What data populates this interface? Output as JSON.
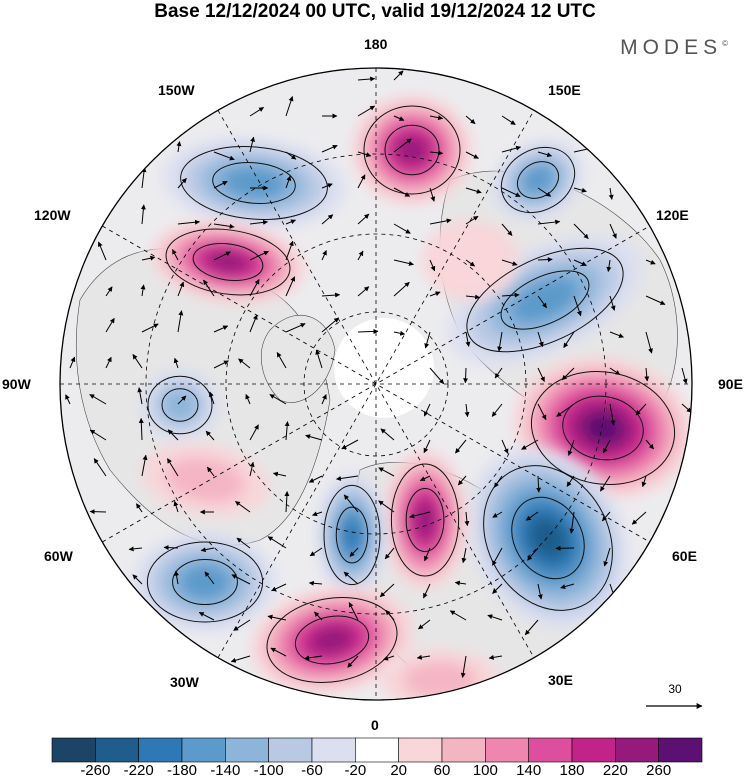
{
  "title": "Base 12/12/2024 00 UTC, valid 19/12/2024 12 UTC",
  "brand": "MODES",
  "brand_mark": "©",
  "longitude_labels": {
    "deg180": "180",
    "e150": "150E",
    "e120": "120E",
    "e90": "90E",
    "e60": "60E",
    "e30": "30E",
    "deg0": "0",
    "w30": "30W",
    "w60": "60W",
    "w90": "90W",
    "w120": "120W",
    "w150": "150W"
  },
  "reference_vector": {
    "value": "30"
  },
  "colorbar": {
    "ticks": [
      "-260",
      "-220",
      "-180",
      "-140",
      "-100",
      "-60",
      "-20",
      "20",
      "60",
      "100",
      "140",
      "180",
      "220",
      "260"
    ],
    "colors": [
      "#1c4466",
      "#1f5d8c",
      "#2e79b5",
      "#5b9acb",
      "#8db5da",
      "#b9c9e4",
      "#dcdff0",
      "#ffffff",
      "#f8d6d9",
      "#f4b5c3",
      "#ee86b0",
      "#dd4f9e",
      "#c22388",
      "#951a7c",
      "#5b1072"
    ]
  },
  "colors": {
    "land": "#e6e6e6",
    "coast": "#444444",
    "grid": "#000000"
  }
}
